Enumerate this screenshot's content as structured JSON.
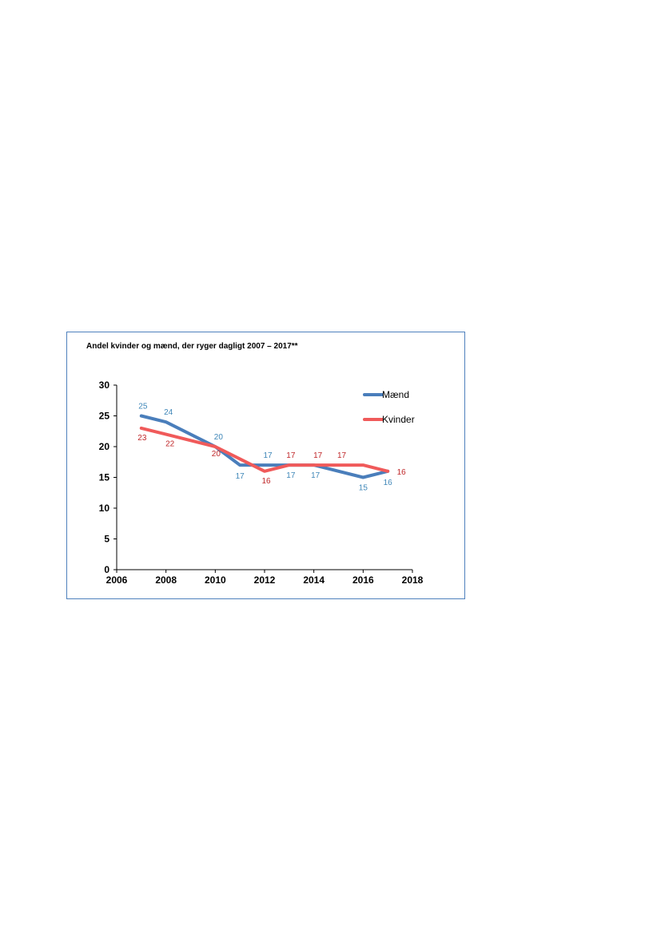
{
  "chart_data": {
    "type": "line",
    "title": "Andel kvinder og mænd, der ryger dagligt 2007 – 2017**",
    "xlabel": "",
    "ylabel": "",
    "xlim": [
      2006,
      2018
    ],
    "ylim": [
      0,
      30
    ],
    "x_ticks": [
      2006,
      2008,
      2010,
      2012,
      2014,
      2016,
      2018
    ],
    "y_ticks": [
      0,
      5,
      10,
      15,
      20,
      25,
      30
    ],
    "grid": false,
    "legend_position": "top-right",
    "series": [
      {
        "name": "Mænd",
        "color": "#4a7ebb",
        "label_color": "#3f87b8",
        "x": [
          2007,
          2008,
          2010,
          2011,
          2012,
          2013,
          2014,
          2016,
          2017
        ],
        "values": [
          25,
          24,
          20,
          17,
          17,
          17,
          17,
          15,
          16
        ],
        "labels": [
          {
            "x": 2007,
            "value": 25,
            "text": "25"
          },
          {
            "x": 2008,
            "value": 24,
            "text": "24"
          },
          {
            "x": 2010,
            "value": 20,
            "text": "20"
          },
          {
            "x": 2011,
            "value": 17,
            "text": "17"
          },
          {
            "x": 2012,
            "value": 17,
            "text": "17"
          },
          {
            "x": 2013,
            "value": 17,
            "text": "17"
          },
          {
            "x": 2014,
            "value": 17,
            "text": "17"
          },
          {
            "x": 2016,
            "value": 15,
            "text": "15"
          },
          {
            "x": 2017,
            "value": 16,
            "text": "16"
          }
        ]
      },
      {
        "name": "Kvinder",
        "color": "#f05a5a",
        "label_color": "#c0282a",
        "x": [
          2007,
          2008,
          2010,
          2011,
          2012,
          2013,
          2014,
          2015,
          2016,
          2017
        ],
        "values": [
          23,
          22,
          20,
          18,
          16,
          17,
          17,
          17,
          17,
          16
        ],
        "labels": [
          {
            "x": 2007,
            "value": 23,
            "text": "23"
          },
          {
            "x": 2008,
            "value": 22,
            "text": "22"
          },
          {
            "x": 2010,
            "value": 20,
            "text": "20"
          },
          {
            "x": 2012,
            "value": 16,
            "text": "16"
          },
          {
            "x": 2013,
            "value": 17,
            "text": "17"
          },
          {
            "x": 2014,
            "value": 17,
            "text": "17"
          },
          {
            "x": 2015,
            "value": 17,
            "text": "17"
          },
          {
            "x": 2017,
            "value": 16,
            "text": "16"
          }
        ]
      }
    ]
  }
}
